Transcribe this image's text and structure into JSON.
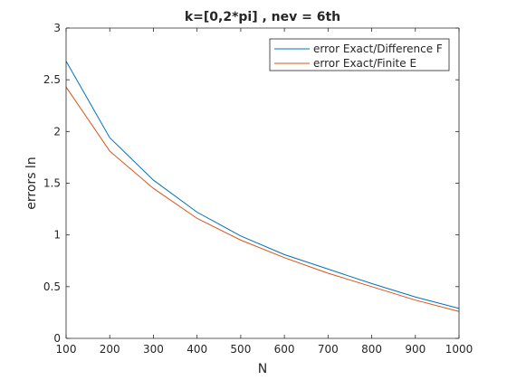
{
  "chart_data": {
    "type": "line",
    "title": "k=[0,2*pi] , nev = 6th",
    "xlabel": "N",
    "ylabel": "errors ln",
    "xlim": [
      100,
      1000
    ],
    "ylim": [
      0,
      3
    ],
    "xticks": [
      100,
      200,
      300,
      400,
      500,
      600,
      700,
      800,
      900,
      1000
    ],
    "yticks": [
      0,
      0.5,
      1,
      1.5,
      2,
      2.5,
      3
    ],
    "grid": false,
    "legend_position": "top-right",
    "x": [
      100,
      200,
      300,
      400,
      500,
      600,
      700,
      800,
      900,
      1000
    ],
    "series": [
      {
        "name": "error Exact/Difference F",
        "color": "#0072BD",
        "values": [
          2.68,
          1.94,
          1.53,
          1.22,
          0.99,
          0.81,
          0.67,
          0.53,
          0.4,
          0.29
        ]
      },
      {
        "name": "error Exact/Finite E",
        "color": "#D95319",
        "values": [
          2.43,
          1.81,
          1.45,
          1.16,
          0.95,
          0.78,
          0.63,
          0.5,
          0.37,
          0.26
        ]
      }
    ]
  }
}
